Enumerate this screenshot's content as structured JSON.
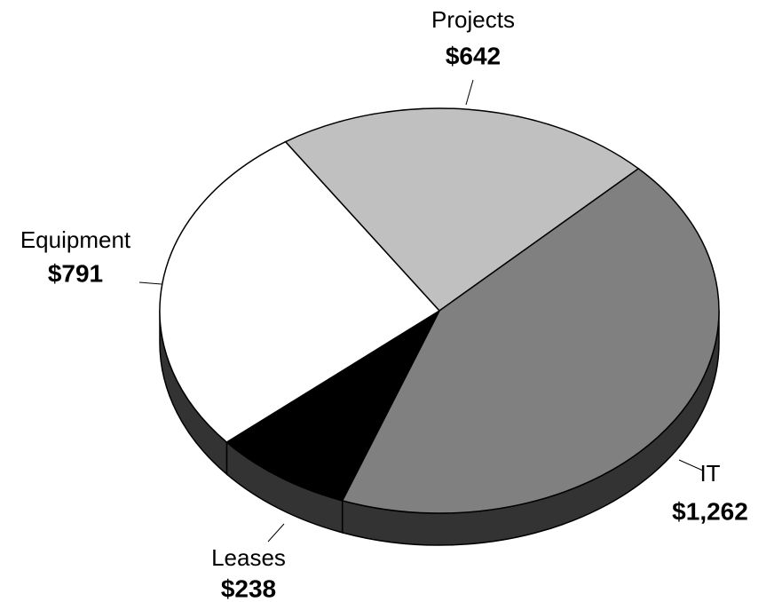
{
  "chart_data": {
    "type": "pie",
    "categories": [
      "Projects",
      "IT",
      "Leases",
      "Equipment"
    ],
    "values": [
      642,
      1262,
      238,
      791
    ],
    "value_labels": [
      "$642",
      "$1,262",
      "$238",
      "$791"
    ],
    "colors": [
      "#c0c0c0",
      "#808080",
      "#000000",
      "#ffffff"
    ],
    "side_color": "#333333"
  }
}
